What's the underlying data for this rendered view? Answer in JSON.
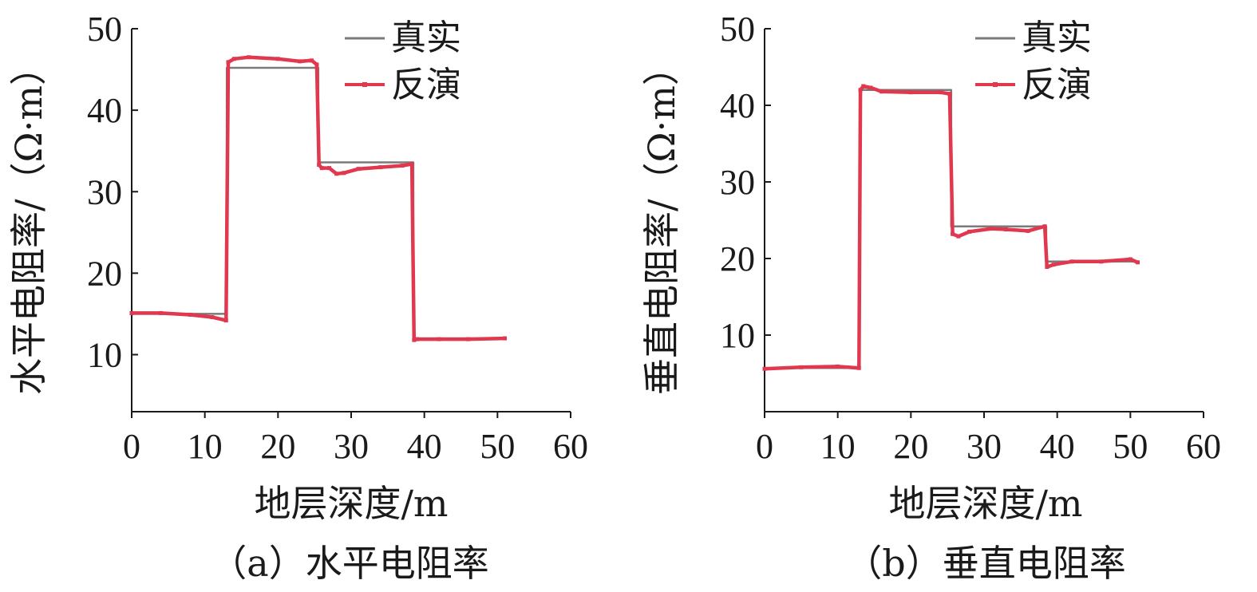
{
  "colors": {
    "true": "#7a7a7a",
    "inversion": "#e0384f",
    "axis": "#1a1a1a"
  },
  "chart_data": [
    {
      "type": "line",
      "panel": "a",
      "caption": "（a）水平电阻率",
      "xlabel": "地层深度/m",
      "ylabel": "水平电阻率/（Ω·m）",
      "xlim": [
        0,
        60
      ],
      "ylim": [
        3,
        50
      ],
      "xticks": [
        "0",
        "10",
        "20",
        "30",
        "40",
        "50",
        "60"
      ],
      "yticks": [
        "10",
        "20",
        "30",
        "40",
        "50"
      ],
      "grid": false,
      "legend_position": "top-right",
      "series": [
        {
          "name": "真实",
          "x": [
            0,
            13,
            13,
            25.5,
            25.5,
            38.5,
            38.5,
            51
          ],
          "y": [
            15,
            15,
            45.2,
            45.2,
            33.6,
            33.6,
            12,
            12
          ]
        },
        {
          "name": "反演",
          "x": [
            0,
            4,
            8,
            11,
            12.9,
            13.2,
            14,
            16,
            20,
            23,
            24.6,
            25.3,
            25.6,
            26,
            27,
            28,
            29,
            31,
            34,
            37,
            38.3,
            38.6,
            39,
            42,
            46,
            51
          ],
          "y": [
            15.1,
            15.1,
            14.9,
            14.6,
            14.2,
            45.9,
            46.3,
            46.5,
            46.3,
            46.0,
            46.1,
            45.6,
            33.3,
            32.9,
            32.9,
            32.2,
            32.3,
            32.8,
            33.0,
            33.2,
            33.4,
            11.8,
            11.9,
            11.9,
            11.9,
            12.0
          ]
        }
      ]
    },
    {
      "type": "line",
      "panel": "b",
      "caption": "（b）垂直电阻率",
      "xlabel": "地层深度/m",
      "ylabel": "垂直电阻率/（Ω·m）",
      "xlim": [
        0,
        60
      ],
      "ylim": [
        0,
        50
      ],
      "xticks": [
        "0",
        "10",
        "20",
        "30",
        "40",
        "50",
        "60"
      ],
      "yticks": [
        "10",
        "20",
        "30",
        "40",
        "50"
      ],
      "grid": false,
      "legend_position": "top-right",
      "series": [
        {
          "name": "真实",
          "x": [
            0,
            13,
            13,
            25.5,
            25.5,
            38.5,
            38.5,
            51
          ],
          "y": [
            5.7,
            5.7,
            42,
            42,
            24.2,
            24.2,
            19.6,
            19.6
          ]
        },
        {
          "name": "反演",
          "x": [
            0,
            5,
            10,
            12.9,
            13.1,
            13.5,
            14.5,
            16,
            20,
            24,
            25.3,
            25.7,
            26.5,
            28,
            31,
            33,
            36,
            38.3,
            38.6,
            39.5,
            42,
            46,
            50,
            51
          ],
          "y": [
            5.6,
            5.8,
            5.9,
            5.7,
            42.0,
            42.5,
            42.3,
            41.8,
            41.7,
            41.7,
            41.5,
            23.2,
            22.9,
            23.5,
            23.9,
            23.8,
            23.6,
            24.2,
            18.9,
            19.2,
            19.6,
            19.6,
            19.9,
            19.5
          ]
        }
      ]
    }
  ]
}
